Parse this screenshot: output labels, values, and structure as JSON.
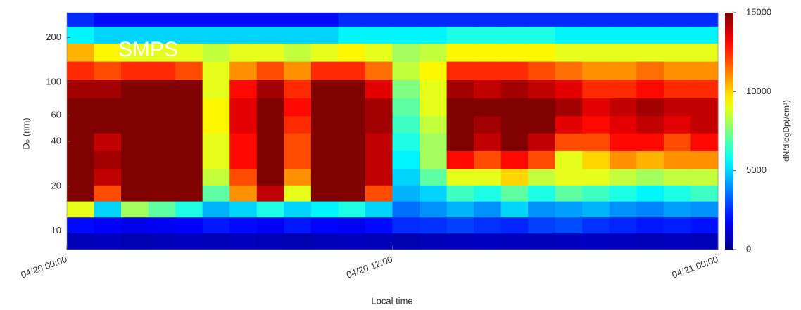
{
  "chart_data": {
    "type": "heatmap",
    "annotation": "SMPS",
    "x_label": "Local time",
    "y_label": "Dₚ (nm)",
    "colorbar_label": "dN/dlogDp(/cm³)",
    "colormap": "jet",
    "y_log": true,
    "x": [
      0.5,
      1.5,
      2.5,
      3.5,
      4.5,
      5.5,
      6.5,
      7.5,
      8.5,
      9.5,
      10.5,
      11.5,
      12.5,
      13.5,
      14.5,
      15.5,
      16.5,
      17.5,
      18.5,
      19.5,
      20.5,
      21.5,
      22.5,
      23.5
    ],
    "y": [
      8.5,
      11,
      14,
      18,
      23,
      30,
      40,
      52,
      68,
      90,
      120,
      160,
      210,
      270
    ],
    "z": [
      [
        800,
        900,
        700,
        800,
        900,
        800,
        900,
        800,
        700,
        800,
        900,
        800,
        700,
        800,
        900,
        1000,
        900,
        800,
        900,
        1000,
        900,
        800,
        900,
        800
      ],
      [
        2000,
        1800,
        1600,
        1700,
        1800,
        2200,
        2000,
        1800,
        2200,
        1900,
        1700,
        2000,
        2500,
        2600,
        2800,
        2600,
        2400,
        2800,
        3000,
        2600,
        2400,
        2200,
        2300,
        2100
      ],
      [
        9000,
        5000,
        8000,
        7000,
        6000,
        4500,
        5000,
        6000,
        5000,
        5500,
        6000,
        5000,
        3500,
        4000,
        4500,
        4000,
        5000,
        4000,
        4200,
        4500,
        4000,
        3800,
        4200,
        4000
      ],
      [
        15000,
        12000,
        15000,
        15000,
        15000,
        7000,
        11000,
        14000,
        9000,
        15000,
        15000,
        12000,
        4500,
        5000,
        6500,
        6000,
        7000,
        6000,
        7000,
        6500,
        6000,
        5500,
        6000,
        6500
      ],
      [
        15000,
        14000,
        15000,
        15000,
        15000,
        8500,
        12000,
        15000,
        11000,
        15000,
        15000,
        14000,
        5000,
        7000,
        9000,
        9000,
        10000,
        8500,
        9000,
        9000,
        8500,
        8000,
        8500,
        8500
      ],
      [
        15000,
        14500,
        15000,
        15000,
        15000,
        9000,
        13000,
        15000,
        12000,
        15000,
        15000,
        14000,
        5500,
        8000,
        13000,
        12000,
        13000,
        12000,
        9000,
        10000,
        11000,
        10500,
        11000,
        11000
      ],
      [
        15000,
        14000,
        15000,
        15000,
        15000,
        9000,
        13000,
        15000,
        12000,
        15000,
        15000,
        14000,
        6000,
        8000,
        15000,
        14000,
        15000,
        14000,
        12000,
        12000,
        13000,
        13000,
        12000,
        13000
      ],
      [
        15000,
        15000,
        15000,
        15000,
        15000,
        9500,
        13500,
        15000,
        12500,
        15000,
        15000,
        14500,
        6500,
        8500,
        15000,
        14500,
        15000,
        15000,
        13500,
        13000,
        13500,
        14000,
        13500,
        14000
      ],
      [
        15000,
        15000,
        15000,
        15000,
        15000,
        9500,
        13500,
        15000,
        13000,
        15000,
        15000,
        14500,
        7000,
        9000,
        15000,
        15000,
        15000,
        15000,
        14500,
        13500,
        14000,
        14500,
        14000,
        14000
      ],
      [
        14500,
        14500,
        15000,
        15000,
        15000,
        9000,
        13000,
        14500,
        12500,
        15000,
        15000,
        13500,
        7500,
        9000,
        14500,
        14000,
        14500,
        14000,
        13500,
        12500,
        12500,
        13000,
        12500,
        12500
      ],
      [
        12500,
        12000,
        12500,
        12500,
        12000,
        9000,
        11000,
        12000,
        11000,
        12500,
        12500,
        11500,
        8500,
        9500,
        12500,
        12500,
        12500,
        12000,
        11500,
        11000,
        11000,
        11500,
        11000,
        11000
      ],
      [
        10500,
        9500,
        9000,
        9000,
        9000,
        8500,
        9000,
        9000,
        8500,
        9000,
        9500,
        9000,
        8000,
        8500,
        9500,
        9500,
        9500,
        9500,
        9000,
        9000,
        9000,
        9000,
        9000,
        9000
      ],
      [
        5500,
        5000,
        5000,
        5000,
        5000,
        5000,
        5000,
        5000,
        5000,
        5000,
        5500,
        5500,
        5500,
        5500,
        6000,
        6000,
        6000,
        6000,
        5500,
        5500,
        5500,
        5500,
        5500,
        5500
      ],
      [
        2500,
        2000,
        2000,
        2000,
        2000,
        2000,
        2000,
        2000,
        2000,
        2000,
        2500,
        2500,
        2500,
        2500,
        2500,
        2500,
        2500,
        2500,
        2500,
        2500,
        2500,
        2500,
        2500,
        2500
      ]
    ],
    "xlim": [
      0,
      24
    ],
    "xticks": [
      {
        "value": 0,
        "label": "04/20 00:00"
      },
      {
        "value": 12,
        "label": "04/20 12:00"
      },
      {
        "value": 24,
        "label": "04/21 00:00"
      }
    ],
    "ylim": [
      7.5,
      294
    ],
    "yticks": [
      10,
      20,
      40,
      60,
      100,
      200
    ],
    "zlim": [
      0,
      15000
    ],
    "zticks": [
      0,
      5000,
      10000,
      15000
    ]
  }
}
